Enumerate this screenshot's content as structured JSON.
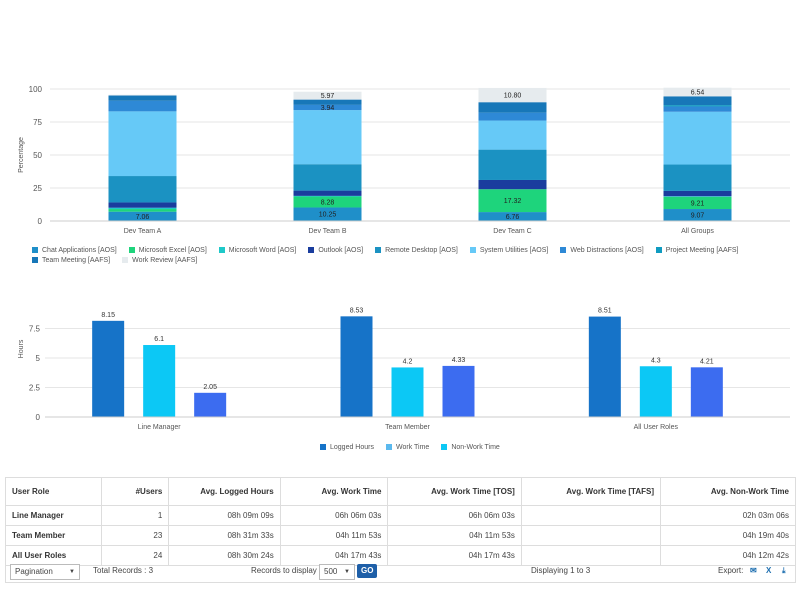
{
  "chart1": {
    "type": "bar",
    "stacked": true,
    "ylabel": "Percentage",
    "ylim": [
      0,
      100
    ],
    "yticks": [
      "0",
      "25",
      "50",
      "75",
      "100"
    ],
    "categories": [
      "Dev Team A",
      "Dev Team B",
      "Dev Team C",
      "All Groups"
    ],
    "series": [
      {
        "name": "Chat Applications [AOS]",
        "color": "#1f8fc9",
        "values": [
          7.06,
          10.25,
          6.76,
          9.07
        ]
      },
      {
        "name": "Microsoft Excel [AOS]",
        "color": "#1ed47c",
        "values": [
          2,
          8.28,
          17.32,
          9.21
        ]
      },
      {
        "name": "Microsoft Word [AOS]",
        "color": "#1ec9c9",
        "values": [
          1,
          0.5,
          0,
          0.5
        ]
      },
      {
        "name": "Outlook [AOS]",
        "color": "#1a3d9e",
        "values": [
          4,
          4,
          7,
          4
        ]
      },
      {
        "name": "Remote Desktop [AOS]",
        "color": "#1b92c2",
        "values": [
          20,
          20,
          23,
          20
        ]
      },
      {
        "name": "System Utilities [AOS]",
        "color": "#66c9f7",
        "values": [
          49,
          41,
          22,
          40
        ]
      },
      {
        "name": "Web Distractions [AOS]",
        "color": "#2e89d6",
        "values": [
          8,
          3.94,
          6,
          4
        ]
      },
      {
        "name": "Project Meeting [AAFS]",
        "color": "#0f9bc0",
        "values": [
          0,
          0,
          0,
          1
        ]
      },
      {
        "name": "Team Meeting [AAFS]",
        "color": "#1777b8",
        "values": [
          4,
          4,
          7.92,
          6.67
        ]
      },
      {
        "name": "Work Review [AAFS]",
        "color": "#e6ebee",
        "values": [
          0.6,
          5.97,
          10.8,
          6.54
        ]
      }
    ],
    "data_labels": [
      {
        "category": 0,
        "series": 0,
        "text": "7.06"
      },
      {
        "category": 1,
        "series": 0,
        "text": "10.25"
      },
      {
        "category": 1,
        "series": 1,
        "text": "8.28"
      },
      {
        "category": 1,
        "series": 6,
        "text": "3.94"
      },
      {
        "category": 1,
        "series": 9,
        "text": "5.97"
      },
      {
        "category": 2,
        "series": 0,
        "text": "6.76"
      },
      {
        "category": 2,
        "series": 1,
        "text": "17.32"
      },
      {
        "category": 2,
        "series": 9,
        "text": "10.80"
      },
      {
        "category": 3,
        "series": 0,
        "text": "9.07"
      },
      {
        "category": 3,
        "series": 1,
        "text": "9.21"
      },
      {
        "category": 3,
        "series": 9,
        "text": "6.54"
      }
    ]
  },
  "chart2": {
    "type": "bar",
    "ylabel": "Hours",
    "ylim": [
      0,
      10
    ],
    "yticks": [
      "0",
      "2.5",
      "5",
      "7.5"
    ],
    "categories": [
      "Line Manager",
      "Team Member",
      "All User Roles"
    ],
    "series": [
      {
        "name": "Logged Hours",
        "color": "#1673c8",
        "values": [
          8.15,
          8.53,
          8.51
        ],
        "labels": [
          "8.15",
          "8.53",
          "8.51"
        ]
      },
      {
        "name": "Work Time",
        "color": "#0cc8f5",
        "values": [
          6.1,
          4.2,
          4.3
        ],
        "labels": [
          "6.1",
          "4.2",
          "4.3"
        ]
      },
      {
        "name": "Non-Work Time",
        "color": "#3c6cf0",
        "values": [
          2.05,
          4.33,
          4.21
        ],
        "labels": [
          "2.05",
          "4.33",
          "4.21"
        ]
      }
    ],
    "legend_colors": [
      "#1673c8",
      "#5bb9ee",
      "#0cc8f5"
    ]
  },
  "table": {
    "headers": [
      "User Role",
      "#Users",
      "Avg. Logged Hours",
      "Avg. Work Time",
      "Avg. Work Time [TOS]",
      "Avg. Work Time [TAFS]",
      "Avg. Non-Work Time"
    ],
    "rows": [
      [
        "Line Manager",
        "1",
        "08h 09m 09s",
        "06h 06m 03s",
        "06h 06m 03s",
        "",
        "02h 03m 06s"
      ],
      [
        "Team Member",
        "23",
        "08h 31m 33s",
        "04h 11m 53s",
        "04h 11m 53s",
        "",
        "04h 19m 40s"
      ],
      [
        "All User Roles",
        "24",
        "08h 30m 24s",
        "04h 17m 43s",
        "04h 17m 43s",
        "",
        "04h 12m 42s"
      ]
    ]
  },
  "footer": {
    "pagination": "Pagination",
    "total": "Total Records : 3",
    "records_label": "Records to display",
    "records_value": "500",
    "go": "GO",
    "displaying": "Displaying 1 to 3",
    "export": "Export:"
  }
}
